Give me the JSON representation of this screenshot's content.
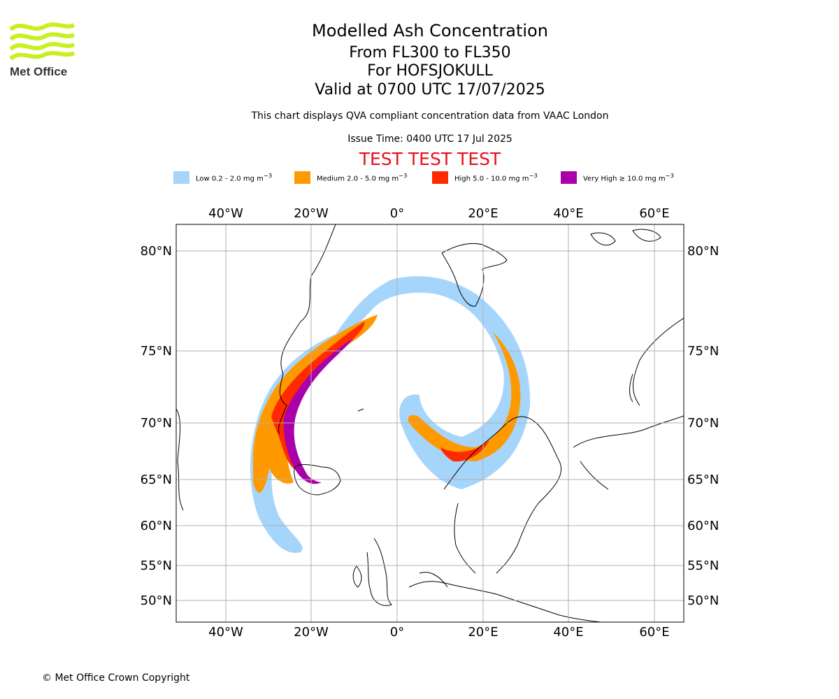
{
  "header": {
    "title": "Modelled Ash Concentration",
    "flight_levels": "From FL300 to FL350",
    "volcano": "For HOFSJOKULL",
    "valid_time": "Valid at 0700 UTC 17/07/2025",
    "subtitle": "This chart displays QVA compliant concentration data from VAAC London",
    "issue_time": "Issue Time: 0400 UTC 17 Jul 2025",
    "test_banner": "TEST TEST TEST",
    "test_color": "#e8101a"
  },
  "logo": {
    "text": "Met Office",
    "icon": "met-office-waves-logo",
    "color": "#c8f020"
  },
  "legend": [
    {
      "label": "Low 0.2 - 2.0 mg m",
      "color": "#a6d5fb"
    },
    {
      "label": "Medium 2.0 - 5.0 mg m",
      "color": "#ff9900"
    },
    {
      "label": "High 5.0 - 10.0 mg m",
      "color": "#ff2a00"
    },
    {
      "label": "Very High ≥ 10.0 mg m",
      "color": "#aa00aa"
    }
  ],
  "legend_unit_sup": "−3",
  "map": {
    "lon_ticks": [
      "40°W",
      "20°W",
      "0°",
      "20°E",
      "40°E",
      "60°E"
    ],
    "lat_ticks": [
      "80°N",
      "75°N",
      "70°N",
      "65°N",
      "60°N",
      "55°N",
      "50°N"
    ],
    "grid": true
  },
  "footer": {
    "copyright": "© Met Office Crown Copyright"
  }
}
